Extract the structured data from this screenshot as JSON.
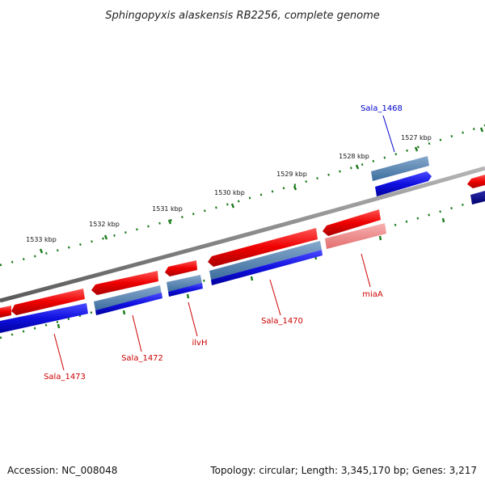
{
  "title": "Sphingopyxis alaskensis RB2256, complete genome",
  "footer": {
    "accession": "Accession: NC_008048",
    "summary": "Topology: circular; Length: 3,345,170 bp; Genes: 3,217"
  },
  "ruler": {
    "ticks": [
      "1527 kbp",
      "1528 kbp",
      "1529 kbp",
      "1530 kbp",
      "1531 kbp",
      "1532 kbp",
      "1533 kbp"
    ]
  },
  "genes": [
    {
      "label": "Sala_1468",
      "color": "#0000cc"
    },
    {
      "label": "miaA",
      "color": "#cc0000"
    },
    {
      "label": "Sala_1470",
      "color": "#cc0000"
    },
    {
      "label": "ilvH",
      "color": "#cc0000"
    },
    {
      "label": "Sala_1472",
      "color": "#cc0000"
    },
    {
      "label": "Sala_1473",
      "color": "#cc0000"
    }
  ],
  "colors": {
    "backbone": "#8a8a8a",
    "tick": "#1a7a1a",
    "cds_forward": "#ee1111",
    "cds_forward_light": "#f08a8a",
    "cds_reverse": "#1010dd",
    "cds_reverse_dark": "#000088",
    "rna_strip": "#4f7fb0"
  }
}
